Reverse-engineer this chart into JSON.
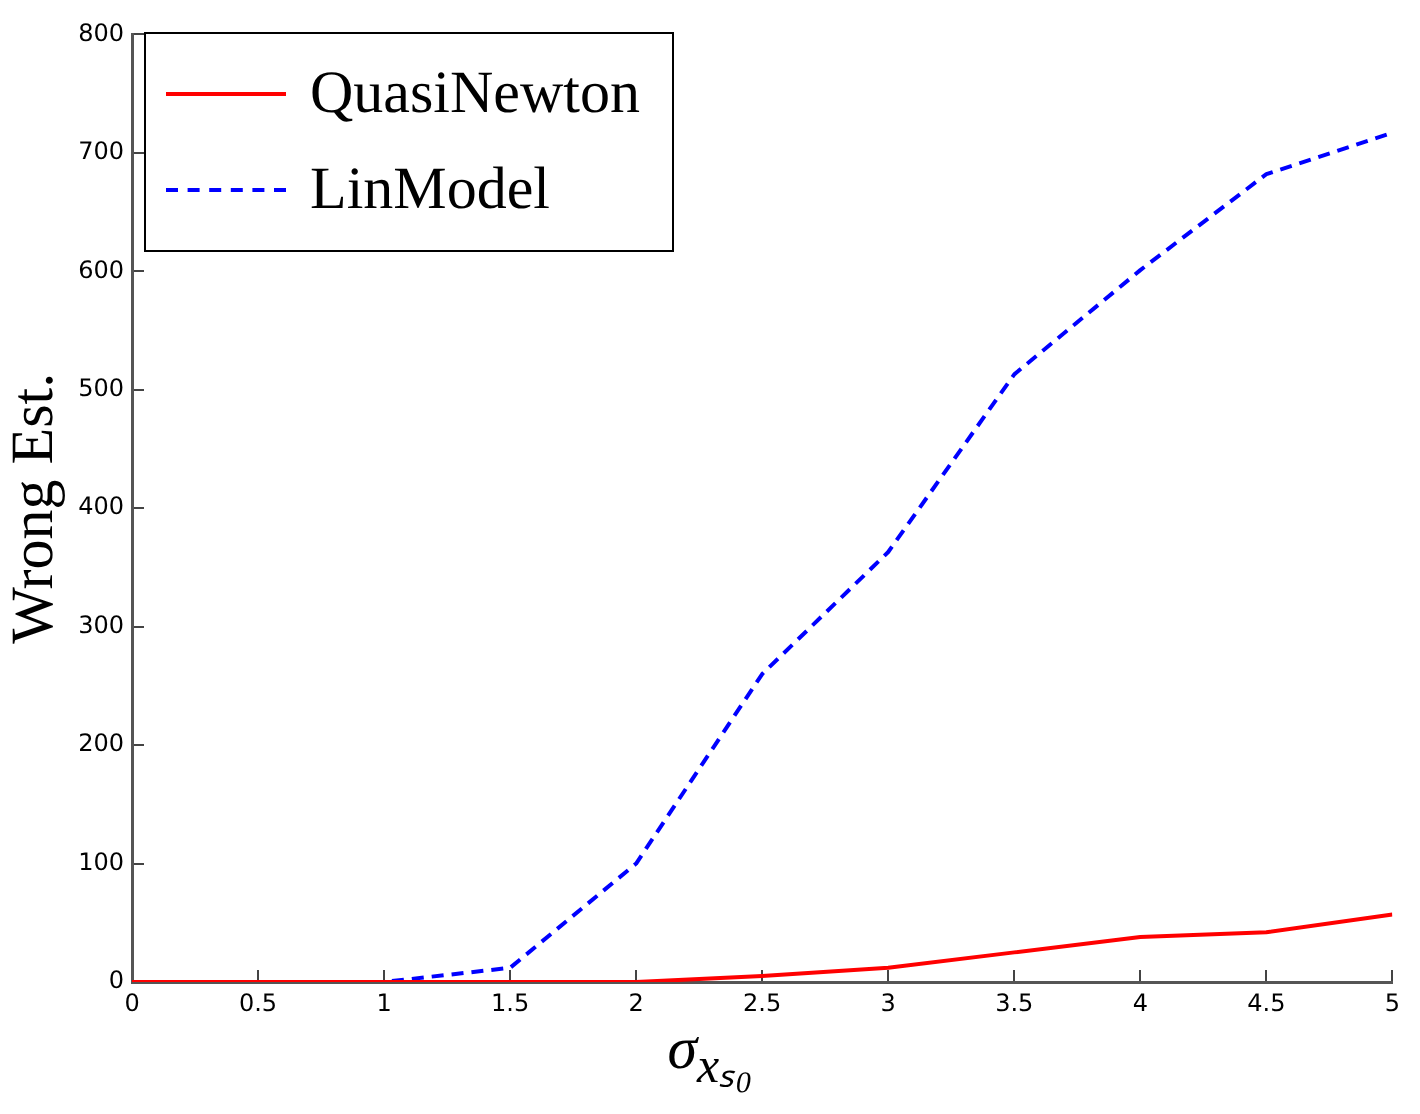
{
  "chart_data": {
    "type": "line",
    "xlabel": "σ$_{xₛ₀}$",
    "ylabel": "Wrong Est.",
    "x": [
      0,
      0.5,
      1,
      1.5,
      2,
      2.5,
      3,
      3.5,
      4,
      4.5,
      5
    ],
    "series": [
      {
        "name": "QuasiNewton",
        "color": "#ff0000",
        "line_style": "solid",
        "values": [
          0,
          0,
          0,
          0,
          0,
          5,
          12,
          25,
          38,
          42,
          57
        ]
      },
      {
        "name": "LinModel",
        "color": "#0000ff",
        "line_style": "dashed",
        "values": [
          0,
          0,
          0,
          12,
          100,
          260,
          363,
          513,
          601,
          682,
          717
        ]
      }
    ],
    "xlim": [
      0,
      5
    ],
    "xticks": [
      0,
      0.5,
      1,
      1.5,
      2,
      2.5,
      3,
      3.5,
      4,
      4.5,
      5
    ],
    "ylim": [
      0,
      800
    ],
    "yticks": [
      0,
      100,
      200,
      300,
      400,
      500,
      600,
      700,
      800
    ],
    "grid": false,
    "legend": "top left",
    "marker": "none"
  }
}
